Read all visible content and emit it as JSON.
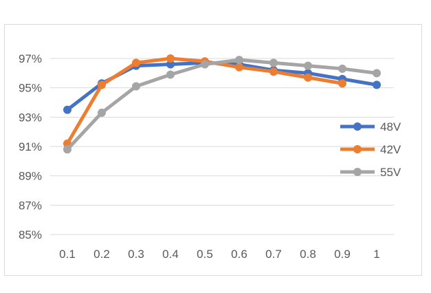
{
  "chart_data": {
    "type": "line",
    "title": "",
    "xlabel": "",
    "ylabel": "",
    "categories": [
      "0.1",
      "0.2",
      "0.3",
      "0.4",
      "0.5",
      "0.6",
      "0.7",
      "0.8",
      "0.9",
      "1"
    ],
    "ylim": [
      85,
      97
    ],
    "yticks": [
      "85%",
      "87%",
      "89%",
      "91%",
      "93%",
      "95%",
      "97%"
    ],
    "grid": true,
    "legend_position": "right",
    "series": [
      {
        "name": "48V",
        "color": "#4472C4",
        "values": [
          93.5,
          95.3,
          96.5,
          96.6,
          96.7,
          96.6,
          96.2,
          96.0,
          95.6,
          95.2
        ]
      },
      {
        "name": "42V",
        "color": "#ED7D31",
        "values": [
          91.2,
          95.2,
          96.7,
          97.0,
          96.8,
          96.4,
          96.1,
          95.7,
          95.3,
          null
        ]
      },
      {
        "name": "55V",
        "color": "#A5A5A5",
        "values": [
          90.8,
          93.3,
          95.1,
          95.9,
          96.6,
          96.9,
          96.7,
          96.5,
          96.3,
          96.0
        ]
      }
    ]
  }
}
